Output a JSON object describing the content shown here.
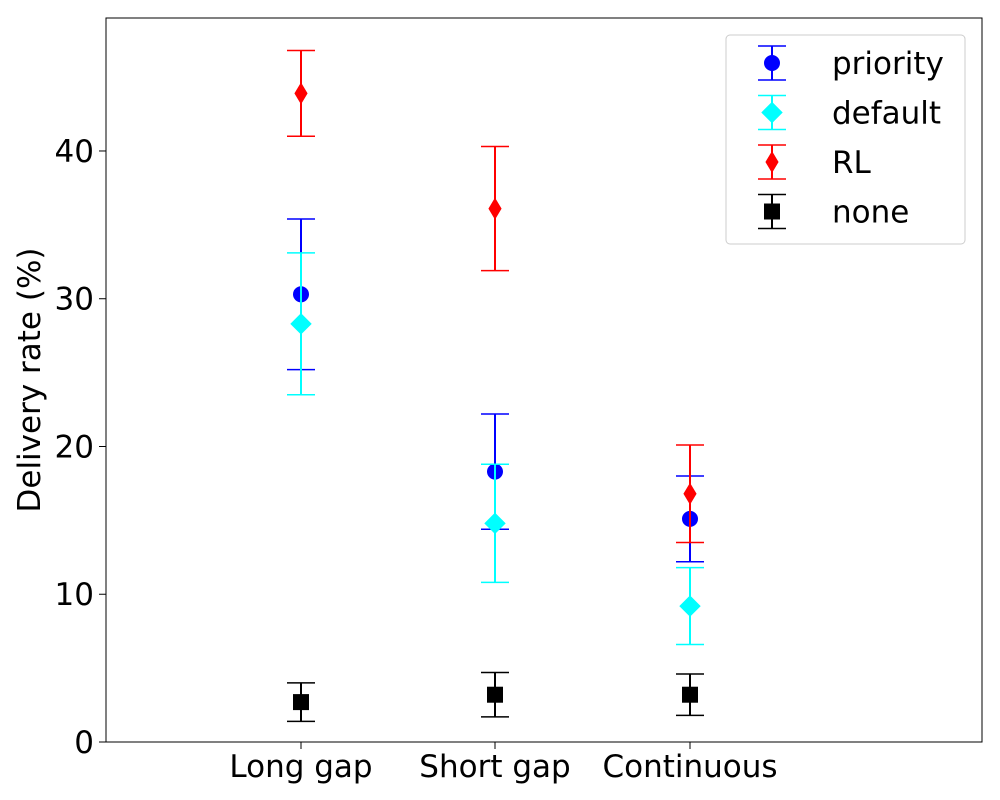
{
  "chart_data": {
    "type": "scatter",
    "title": "",
    "xlabel": "",
    "ylabel": "Delivery rate (%)",
    "categories": [
      "Long gap",
      "Short gap",
      "Continuous"
    ],
    "ylim": [
      0,
      49
    ],
    "yticks": [
      0,
      10,
      20,
      30,
      40
    ],
    "grid": false,
    "legend_position": "top-right",
    "series": [
      {
        "name": "priority",
        "color": "#0000ff",
        "marker": "circle",
        "values": [
          30.3,
          18.3,
          15.1
        ],
        "error_low": [
          25.2,
          14.4,
          12.2
        ],
        "error_high": [
          35.4,
          22.2,
          18.0
        ]
      },
      {
        "name": "default",
        "color": "#00ffff",
        "marker": "diamond",
        "values": [
          28.3,
          14.8,
          9.2
        ],
        "error_low": [
          23.5,
          10.8,
          6.6
        ],
        "error_high": [
          33.1,
          18.8,
          11.8
        ]
      },
      {
        "name": "RL",
        "color": "#ff0000",
        "marker": "thin-diamond",
        "values": [
          43.9,
          36.1,
          16.8
        ],
        "error_low": [
          41.0,
          31.9,
          13.5
        ],
        "error_high": [
          46.8,
          40.3,
          20.1
        ]
      },
      {
        "name": "none",
        "color": "#000000",
        "marker": "square",
        "values": [
          2.7,
          3.2,
          3.2
        ],
        "error_low": [
          1.4,
          1.7,
          1.8
        ],
        "error_high": [
          4.0,
          4.7,
          4.6
        ]
      }
    ]
  }
}
